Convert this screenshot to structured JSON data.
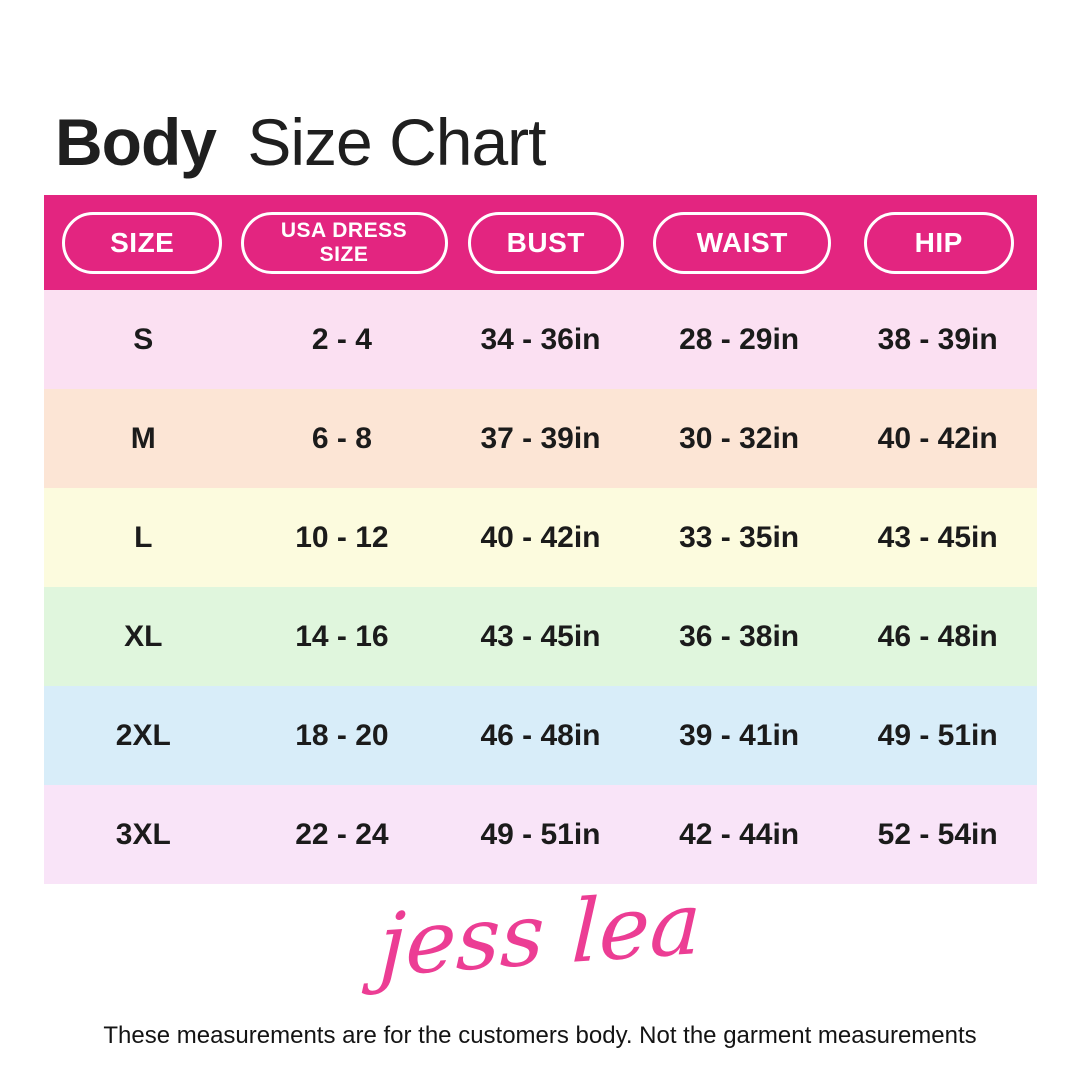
{
  "page": {
    "title_bold": "Body",
    "title_regular": "Size Chart"
  },
  "table": {
    "header_bg": "#E32580",
    "headers": [
      {
        "label": "SIZE",
        "lines": [
          "SIZE"
        ]
      },
      {
        "label": "USA DRESS SIZE",
        "lines": [
          "USA DRESS",
          "SIZE"
        ]
      },
      {
        "label": "BUST",
        "lines": [
          "BUST"
        ]
      },
      {
        "label": "WAIST",
        "lines": [
          "WAIST"
        ]
      },
      {
        "label": "HIP",
        "lines": [
          "HIP"
        ]
      }
    ],
    "rows": [
      {
        "bg": "#FBE0F2",
        "cells": [
          "S",
          "2 - 4",
          "34 - 36in",
          "28 - 29in",
          "38 - 39in"
        ]
      },
      {
        "bg": "#FCE5D5",
        "cells": [
          "M",
          "6 - 8",
          "37 - 39in",
          "30 - 32in",
          "40 - 42in"
        ]
      },
      {
        "bg": "#FCFBDE",
        "cells": [
          "L",
          "10 - 12",
          "40 - 42in",
          "33 - 35in",
          "43 - 45in"
        ]
      },
      {
        "bg": "#E0F6DD",
        "cells": [
          "XL",
          "14 - 16",
          "43 - 45in",
          "36 - 38in",
          "46 - 48in"
        ]
      },
      {
        "bg": "#D8EDF9",
        "cells": [
          "2XL",
          "18 - 20",
          "46 - 48in",
          "39 - 41in",
          "49 - 51in"
        ]
      },
      {
        "bg": "#F9E4F8",
        "cells": [
          "3XL",
          "22 - 24",
          "49 - 51in",
          "42 - 44in",
          "52 - 54in"
        ]
      }
    ]
  },
  "logo": {
    "text": "jess lea",
    "color": "#EC3D94"
  },
  "footer": {
    "note": "These measurements are for the customers body. Not the garment measurements"
  },
  "chart_data": {
    "type": "table",
    "title": "Body Size Chart",
    "columns": [
      "SIZE",
      "USA DRESS SIZE",
      "BUST",
      "WAIST",
      "HIP"
    ],
    "rows": [
      [
        "S",
        "2 - 4",
        "34 - 36in",
        "28 - 29in",
        "38 - 39in"
      ],
      [
        "M",
        "6 - 8",
        "37 - 39in",
        "30 - 32in",
        "40 - 42in"
      ],
      [
        "L",
        "10 - 12",
        "40 - 42in",
        "33 - 35in",
        "43 - 45in"
      ],
      [
        "XL",
        "14 - 16",
        "43 - 45in",
        "36 - 38in",
        "46 - 48in"
      ],
      [
        "2XL",
        "18 - 20",
        "46 - 48in",
        "39 - 41in",
        "49 - 51in"
      ],
      [
        "3XL",
        "22 - 24",
        "49 - 51in",
        "42 - 44in",
        "52 - 54in"
      ]
    ],
    "row_colors": [
      "#FBE0F2",
      "#FCE5D5",
      "#FCFBDE",
      "#E0F6DD",
      "#D8EDF9",
      "#F9E4F8"
    ],
    "header_color": "#E32580",
    "note": "These measurements are for the customers body. Not the garment measurements"
  }
}
